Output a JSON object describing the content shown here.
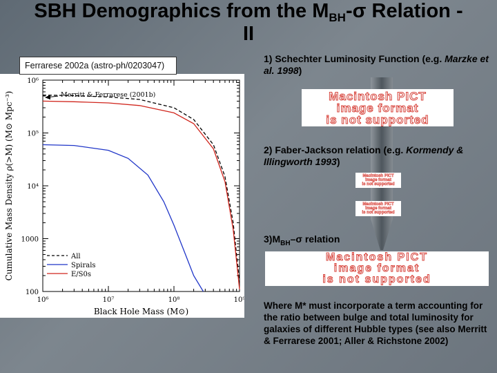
{
  "title": {
    "main": "SBH Demographics from the M",
    "sub": "BH",
    "sigma": "-σ",
    "rest": " Relation -",
    "line2": "II"
  },
  "caption": "Ferrarese 2002a (astro-ph/0203047)",
  "steps": {
    "step1": {
      "text": "1) Schechter Luminosity Function (e.g. ",
      "cite": "Marzke et al. 1998",
      "end": ")"
    },
    "step2": {
      "text": "2) Faber-Jackson relation (e.g. ",
      "cite": "Kormendy & Illingworth 1993",
      "end": ")"
    },
    "step3": {
      "pre": "3)M",
      "sub": "BH",
      "post": "–σ  relation"
    },
    "note": "Where M* must incorporate a term accounting for the ratio between bulge and total luminosity for galaxies of different Hubble types (see also Merritt & Ferrarese 2001; Aller & Richstone 2002)"
  },
  "pict_placeholder": {
    "line1": "Macintosh PICT",
    "line2": "image format",
    "line3": "is not supported"
  },
  "chart_data": {
    "type": "line",
    "title": "",
    "xlabel": "Black Hole Mass (M⊙)",
    "ylabel": "Cumulative Mass Density ρ(>M) (M⊙ Mpc⁻³)",
    "xscale": "log",
    "yscale": "log",
    "xlim": [
      1000000,
      1000000000
    ],
    "ylim": [
      100,
      1000000
    ],
    "x_tick_labels": [
      "10⁶",
      "10⁷",
      "10⁸",
      "10⁹"
    ],
    "y_tick_labels": [
      "100",
      "1000",
      "10⁴",
      "10⁵",
      "10⁶"
    ],
    "annotation": "Merritt & Ferrarese (2001b)",
    "annotation_value": 470000,
    "legend_position": "bottom-left",
    "series": [
      {
        "name": "All",
        "color": "#000000",
        "dash": "dashed",
        "x": [
          1000000,
          3000000,
          10000000,
          30000000,
          100000000,
          200000000,
          400000000,
          600000000,
          800000000,
          1000000000
        ],
        "y": [
          520000,
          510000,
          480000,
          430000,
          300000,
          180000,
          60000,
          15000,
          2000,
          150
        ]
      },
      {
        "name": "Spirals",
        "color": "#1f35c8",
        "dash": "solid",
        "x": [
          1000000,
          3000000,
          10000000,
          20000000,
          40000000,
          70000000,
          100000000,
          150000000,
          200000000,
          280000000
        ],
        "y": [
          60000,
          58000,
          47000,
          33000,
          16000,
          5000,
          1800,
          500,
          200,
          100
        ]
      },
      {
        "name": "E/S0s",
        "color": "#d0251c",
        "dash": "solid",
        "x": [
          1000000,
          3000000,
          10000000,
          30000000,
          100000000,
          200000000,
          400000000,
          600000000,
          800000000,
          1000000000
        ],
        "y": [
          400000,
          390000,
          370000,
          330000,
          240000,
          150000,
          50000,
          12000,
          1500,
          110
        ]
      }
    ]
  }
}
